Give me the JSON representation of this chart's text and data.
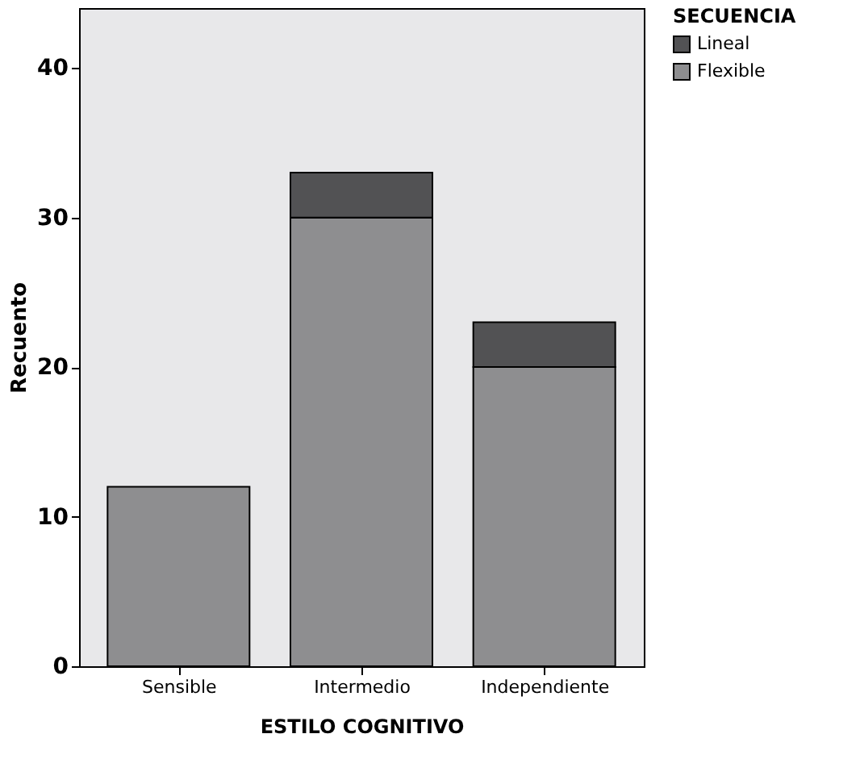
{
  "chart_data": {
    "type": "bar",
    "stacked": true,
    "xlabel": "ESTILO  COGNITIVO",
    "ylabel": "Recuento",
    "legend_title": "SECUENCIA",
    "legend": "top right",
    "categories": [
      "Sensible",
      "Intermedio",
      "Independiente"
    ],
    "series": [
      {
        "name": "Flexible",
        "color": "#8e8e90",
        "values": [
          12,
          30,
          20
        ]
      },
      {
        "name": "Lineal",
        "color": "#525254",
        "values": [
          null,
          3,
          3
        ]
      }
    ],
    "ylim": [
      0,
      44
    ],
    "yticks": [
      0,
      10,
      20,
      30,
      40
    ],
    "grid": false
  }
}
